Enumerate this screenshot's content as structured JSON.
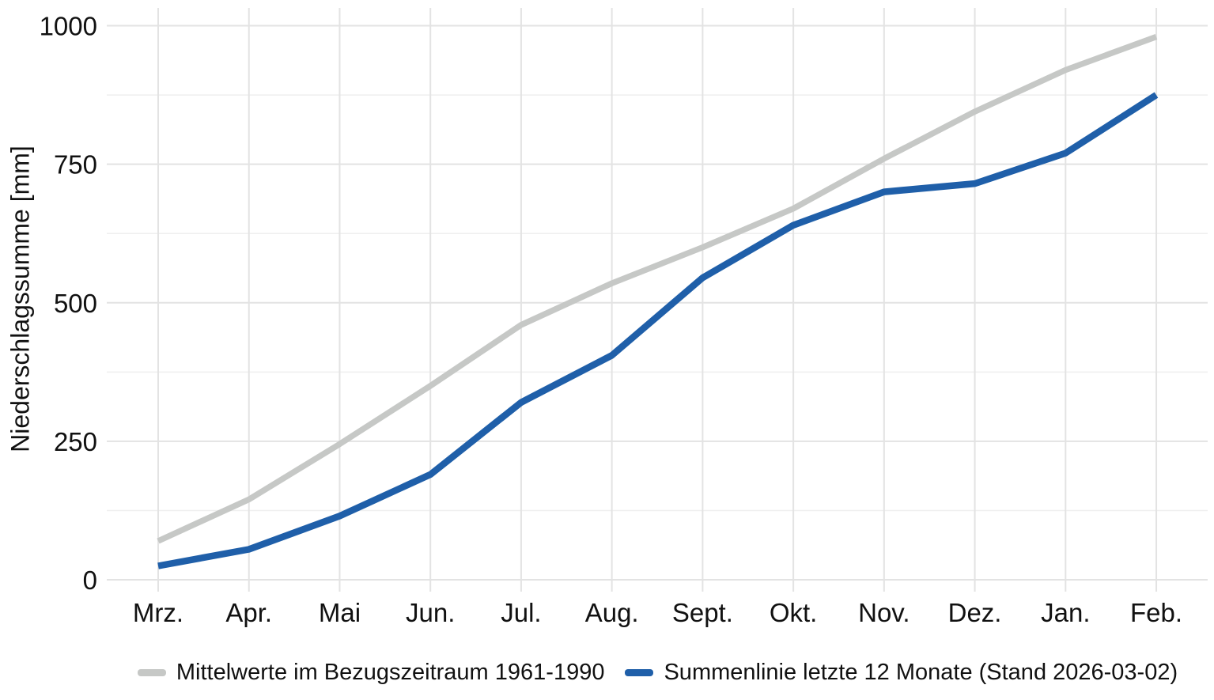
{
  "chart_data": {
    "type": "line",
    "title": "",
    "ylabel": "Niederschlagssumme [mm]",
    "xlabel": "",
    "categories": [
      "Mrz.",
      "Apr.",
      "Mai",
      "Jun.",
      "Jul.",
      "Aug.",
      "Sept.",
      "Okt.",
      "Nov.",
      "Dez.",
      "Jan.",
      "Feb."
    ],
    "y_ticks": [
      0,
      250,
      500,
      750,
      1000
    ],
    "ylim": [
      0,
      1050
    ],
    "grid": {
      "horizontal_major": true,
      "horizontal_minor": true,
      "vertical_major": true,
      "vertical_minor": false
    },
    "legend_position": "bottom",
    "series": [
      {
        "name": "Mittelwerte im Bezugszeitraum 1961-1990",
        "color": "#c6c8c6",
        "values": [
          70,
          145,
          245,
          350,
          460,
          535,
          600,
          670,
          760,
          845,
          920,
          980
        ]
      },
      {
        "name": "Summenlinie letzte 12 Monate (Stand 2026-03-02)",
        "color": "#1f5fa9",
        "values": [
          25,
          55,
          115,
          190,
          320,
          405,
          545,
          640,
          700,
          715,
          770,
          875
        ]
      }
    ]
  },
  "colors": {
    "background": "#ffffff",
    "grid_major": "#e3e3e3",
    "grid_minor": "#efefef",
    "text": "#111111"
  }
}
